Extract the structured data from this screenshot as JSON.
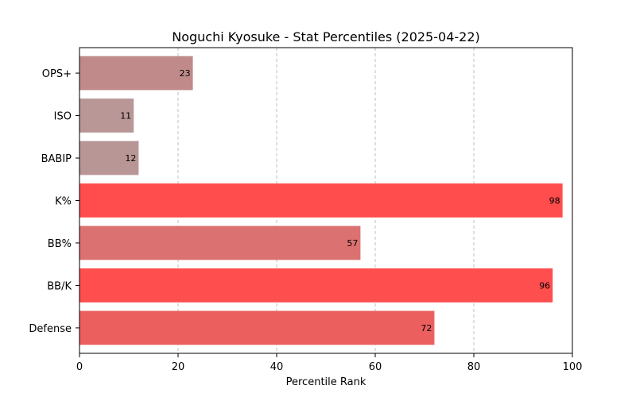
{
  "chart_data": {
    "type": "bar",
    "orientation": "horizontal",
    "title": "Noguchi Kyosuke - Stat Percentiles (2025-04-22)",
    "xlabel": "Percentile Rank",
    "ylabel": "",
    "xlim": [
      0,
      100
    ],
    "xticks": [
      0,
      20,
      40,
      60,
      80,
      100
    ],
    "grid": "x-dashed",
    "categories": [
      "OPS+",
      "ISO",
      "BABIP",
      "K%",
      "BB%",
      "BB/K",
      "Defense"
    ],
    "values": [
      23,
      11,
      12,
      98,
      57,
      96,
      72
    ],
    "colors": [
      "#c08a8a",
      "#b99797",
      "#b99696",
      "#ff4c4c",
      "#db7170",
      "#ff4e4e",
      "#ec5f5f"
    ]
  }
}
